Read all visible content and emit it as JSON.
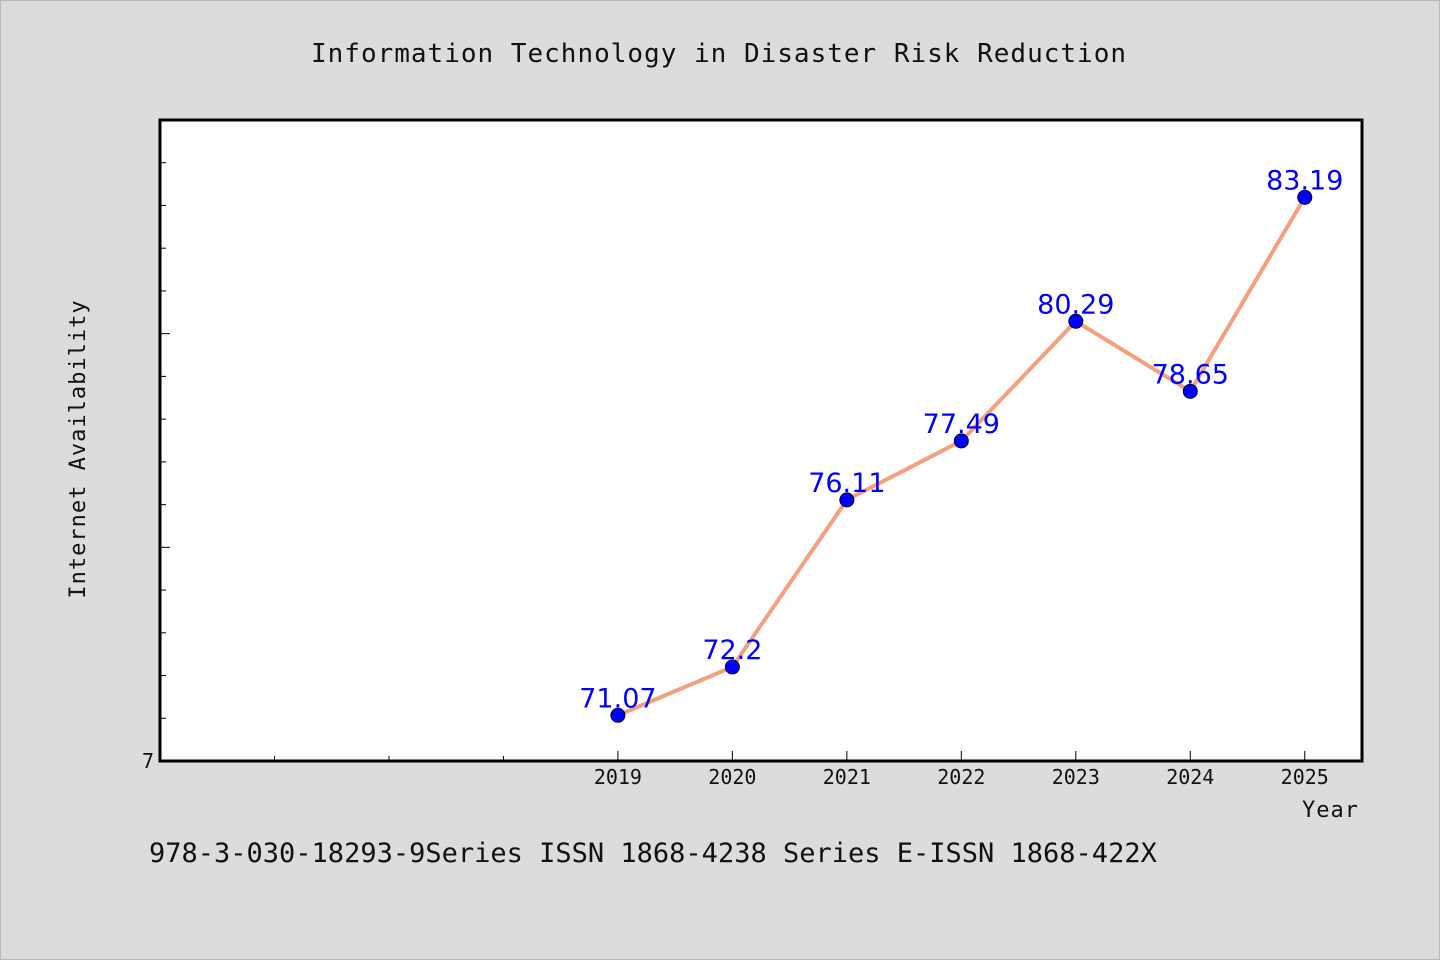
{
  "chart_data": {
    "type": "line",
    "title": "Information Technology in Disaster Risk Reduction",
    "xlabel": "Year",
    "ylabel": "Internet Availability",
    "x": [
      "2019",
      "2020",
      "2021",
      "2022",
      "2023",
      "2024",
      "2025"
    ],
    "series": [
      {
        "values": [
          71.07,
          72.2,
          76.11,
          77.49,
          80.29,
          78.65,
          83.19
        ],
        "data_labels": [
          "71.07",
          "72.2",
          "76.11",
          "77.49",
          "80.29",
          "78.65",
          "83.19"
        ]
      }
    ],
    "y_tick_labels": [
      "7"
    ],
    "ylim": [
      70,
      85
    ],
    "xlim": [
      2015,
      2025.5
    ],
    "grid": false,
    "line_color": "#f4a07f",
    "marker_color": "#0000ff",
    "label_color": "#0000ff"
  },
  "footer_text": "978-3-030-18293-9Series ISSN 1868-4238 Series E-ISSN 1868-422X"
}
